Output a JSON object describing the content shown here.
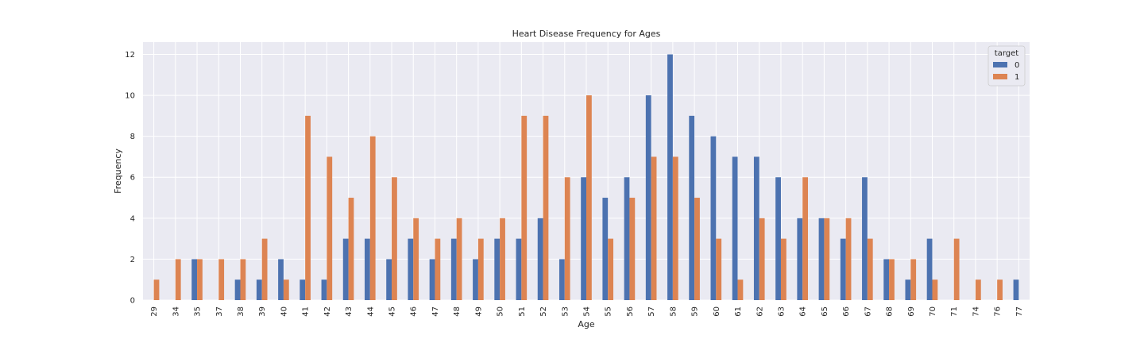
{
  "chart_data": {
    "type": "bar",
    "title": "Heart Disease Frequency for Ages",
    "xlabel": "Age",
    "ylabel": "Frequency",
    "ylim": [
      0,
      12.6
    ],
    "yticks": [
      0,
      2,
      4,
      6,
      8,
      10,
      12
    ],
    "grid": true,
    "legend": {
      "title": "target",
      "position": "top-right"
    },
    "categories": [
      "29",
      "34",
      "35",
      "37",
      "38",
      "39",
      "40",
      "41",
      "42",
      "43",
      "44",
      "45",
      "46",
      "47",
      "48",
      "49",
      "50",
      "51",
      "52",
      "53",
      "54",
      "55",
      "56",
      "57",
      "58",
      "59",
      "60",
      "61",
      "62",
      "63",
      "64",
      "65",
      "66",
      "67",
      "68",
      "69",
      "70",
      "71",
      "74",
      "76",
      "77"
    ],
    "series": [
      {
        "name": "0",
        "color": "#4c72b0",
        "values": [
          0,
          0,
          2,
          0,
          1,
          1,
          2,
          1,
          1,
          3,
          3,
          2,
          3,
          2,
          3,
          2,
          3,
          3,
          4,
          2,
          6,
          5,
          6,
          10,
          12,
          9,
          8,
          7,
          7,
          6,
          4,
          4,
          3,
          6,
          2,
          1,
          3,
          0,
          0,
          0,
          1
        ]
      },
      {
        "name": "1",
        "color": "#dd8452",
        "values": [
          1,
          2,
          2,
          2,
          2,
          3,
          1,
          9,
          7,
          5,
          8,
          6,
          4,
          3,
          4,
          3,
          4,
          9,
          9,
          6,
          10,
          3,
          5,
          7,
          7,
          5,
          3,
          1,
          4,
          3,
          6,
          4,
          4,
          3,
          2,
          2,
          1,
          3,
          1,
          1,
          0
        ]
      }
    ],
    "plot_background": "#eaeaf2",
    "grid_color": "#ffffff"
  }
}
